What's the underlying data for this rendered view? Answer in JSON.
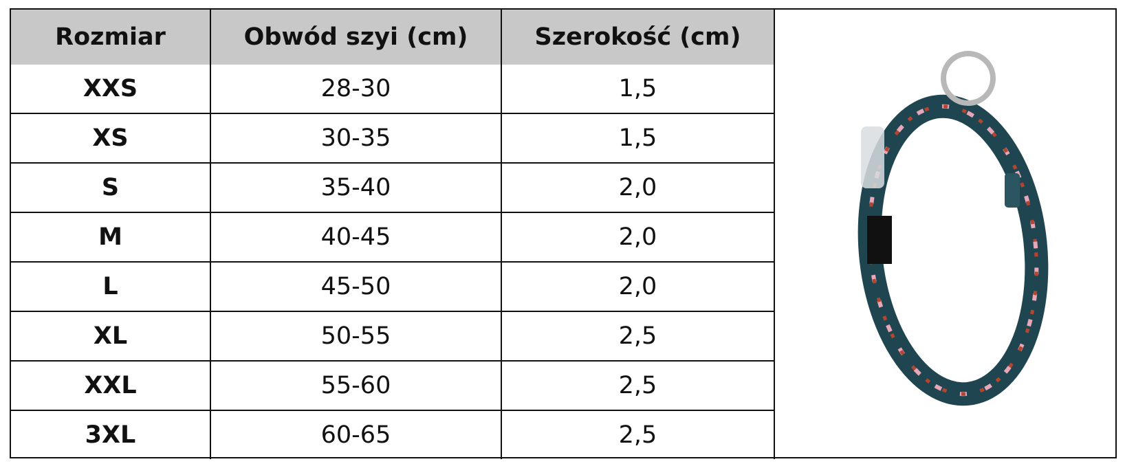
{
  "table": {
    "header": [
      "Rozmiar",
      "Obwód szyi (cm)",
      "Szerokość (cm)"
    ],
    "rows": [
      [
        "XXS",
        "28-30",
        "1,5"
      ],
      [
        "XS",
        "30-35",
        "1,5"
      ],
      [
        "S",
        "35-40",
        "2,0"
      ],
      [
        "M",
        "40-45",
        "2,0"
      ],
      [
        "L",
        "45-50",
        "2,0"
      ],
      [
        "XL",
        "50-55",
        "2,5"
      ],
      [
        "XXL",
        "55-60",
        "2,5"
      ],
      [
        "3XL",
        "60-65",
        "2,5"
      ]
    ]
  }
}
